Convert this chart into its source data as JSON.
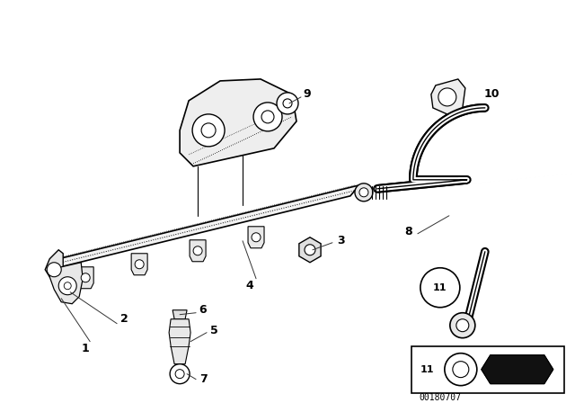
{
  "bg_color": "#ffffff",
  "line_color": "#000000",
  "fig_width": 6.4,
  "fig_height": 4.48,
  "dpi": 100,
  "image_id": "00180707"
}
